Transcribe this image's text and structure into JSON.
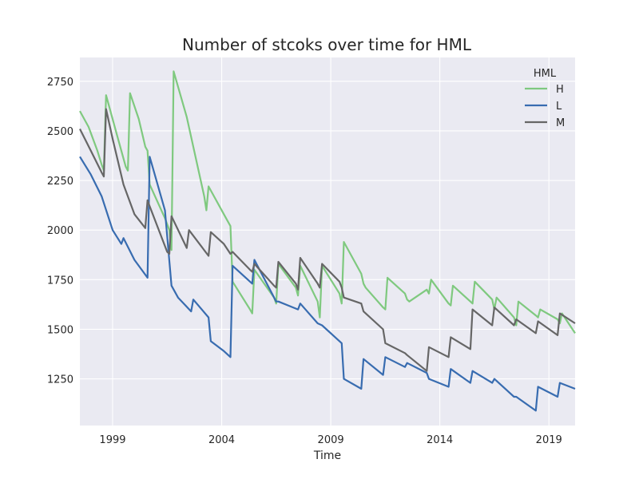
{
  "chart_data": {
    "type": "line",
    "title": "Number of stcoks over time for HML",
    "xlabel": "Time",
    "ylabel": "",
    "xlim": [
      1997.5,
      2020.2
    ],
    "ylim": [
      1015,
      2870
    ],
    "x_ticks": [
      1999,
      2004,
      2009,
      2014,
      2019
    ],
    "y_ticks": [
      1250,
      1500,
      1750,
      2000,
      2250,
      2500,
      2750
    ],
    "grid": true,
    "legend": {
      "title": "HML",
      "position": "top-right"
    },
    "colors": {
      "H": "#7fc97f",
      "L": "#386cb0",
      "M": "#666666",
      "background": "#eaeaf2",
      "grid": "#ffffff"
    },
    "series": [
      {
        "name": "H",
        "x": [
          1997.5,
          1997.9,
          1998.3,
          1998.5,
          1998.6,
          1998.7,
          1999.2,
          1999.6,
          1999.7,
          1999.8,
          2000.2,
          2000.5,
          2000.6,
          2000.7,
          2001.4,
          2001.6,
          2001.7,
          2001.8,
          2002.4,
          2003.2,
          2003.3,
          2003.4,
          2004.2,
          2004.4,
          2004.5,
          2005.3,
          2005.4,
          2005.5,
          2006.4,
          2006.5,
          2006.6,
          2007.4,
          2007.5,
          2007.6,
          2008.4,
          2008.5,
          2008.6,
          2009.4,
          2009.5,
          2009.6,
          2010.4,
          2010.5,
          2010.6,
          2011.4,
          2011.5,
          2011.6,
          2012.4,
          2012.5,
          2012.6,
          2013.4,
          2013.5,
          2013.6,
          2014.4,
          2014.5,
          2014.6,
          2015.4,
          2015.5,
          2015.6,
          2016.4,
          2016.5,
          2016.6,
          2017.4,
          2017.5,
          2017.6,
          2018.4,
          2018.5,
          2018.6,
          2019.4,
          2019.5,
          2019.6,
          2020.2
        ],
        "values": [
          2600,
          2520,
          2400,
          2330,
          2300,
          2680,
          2480,
          2320,
          2300,
          2690,
          2560,
          2420,
          2400,
          2230,
          2060,
          2000,
          1900,
          2800,
          2570,
          2170,
          2100,
          2220,
          2060,
          2020,
          1740,
          1600,
          1580,
          1800,
          1660,
          1630,
          1830,
          1710,
          1670,
          1820,
          1640,
          1560,
          1820,
          1680,
          1630,
          1940,
          1780,
          1730,
          1710,
          1610,
          1600,
          1760,
          1680,
          1650,
          1640,
          1700,
          1680,
          1750,
          1630,
          1620,
          1720,
          1640,
          1630,
          1740,
          1650,
          1600,
          1660,
          1560,
          1520,
          1640,
          1570,
          1560,
          1600,
          1550,
          1530,
          1580,
          1480
        ]
      },
      {
        "name": "L",
        "x": [
          1997.5,
          1998.0,
          1998.5,
          1999.0,
          1999.4,
          1999.5,
          2000.0,
          2000.6,
          2000.7,
          2001.4,
          2001.7,
          2002.0,
          2002.6,
          2002.7,
          2003.4,
          2003.5,
          2004.1,
          2004.4,
          2004.5,
          2005.4,
          2005.5,
          2006.5,
          2006.6,
          2007.5,
          2007.6,
          2008.4,
          2008.6,
          2009.2,
          2009.5,
          2009.6,
          2010.4,
          2010.5,
          2011.4,
          2011.5,
          2012.4,
          2012.5,
          2013.4,
          2013.5,
          2014.4,
          2014.5,
          2015.4,
          2015.5,
          2016.4,
          2016.5,
          2017.4,
          2017.5,
          2018.4,
          2018.5,
          2019.4,
          2019.5,
          2020.2
        ],
        "values": [
          2370,
          2280,
          2170,
          2000,
          1930,
          1960,
          1850,
          1760,
          2370,
          2100,
          1720,
          1660,
          1590,
          1650,
          1560,
          1440,
          1390,
          1360,
          1820,
          1730,
          1850,
          1640,
          1640,
          1600,
          1630,
          1530,
          1520,
          1460,
          1430,
          1250,
          1200,
          1350,
          1270,
          1360,
          1310,
          1330,
          1280,
          1250,
          1210,
          1300,
          1230,
          1290,
          1230,
          1250,
          1160,
          1160,
          1090,
          1210,
          1160,
          1230,
          1200
        ]
      },
      {
        "name": "M",
        "x": [
          1997.5,
          1998.0,
          1998.5,
          1998.6,
          1998.7,
          1999.0,
          1999.5,
          2000.0,
          2000.5,
          2000.6,
          2000.7,
          2001.5,
          2001.6,
          2001.7,
          2002.4,
          2002.5,
          2003.4,
          2003.5,
          2004.1,
          2004.4,
          2004.5,
          2005.3,
          2005.4,
          2005.5,
          2006.4,
          2006.5,
          2006.6,
          2007.4,
          2007.5,
          2007.6,
          2008.4,
          2008.5,
          2008.6,
          2009.4,
          2009.5,
          2009.6,
          2010.4,
          2010.5,
          2011.4,
          2011.5,
          2012.4,
          2012.5,
          2013.4,
          2013.5,
          2014.4,
          2014.5,
          2015.4,
          2015.5,
          2016.4,
          2016.5,
          2017.4,
          2017.5,
          2018.4,
          2018.5,
          2019.4,
          2019.5,
          2020.2
        ],
        "values": [
          2510,
          2400,
          2290,
          2270,
          2610,
          2460,
          2230,
          2080,
          2010,
          2150,
          2120,
          1890,
          1880,
          2070,
          1910,
          2000,
          1870,
          1990,
          1930,
          1880,
          1890,
          1800,
          1790,
          1830,
          1720,
          1710,
          1840,
          1730,
          1700,
          1860,
          1730,
          1710,
          1830,
          1740,
          1710,
          1660,
          1630,
          1590,
          1500,
          1430,
          1380,
          1370,
          1290,
          1410,
          1360,
          1460,
          1400,
          1600,
          1520,
          1610,
          1520,
          1550,
          1480,
          1540,
          1470,
          1580,
          1530
        ]
      }
    ]
  }
}
